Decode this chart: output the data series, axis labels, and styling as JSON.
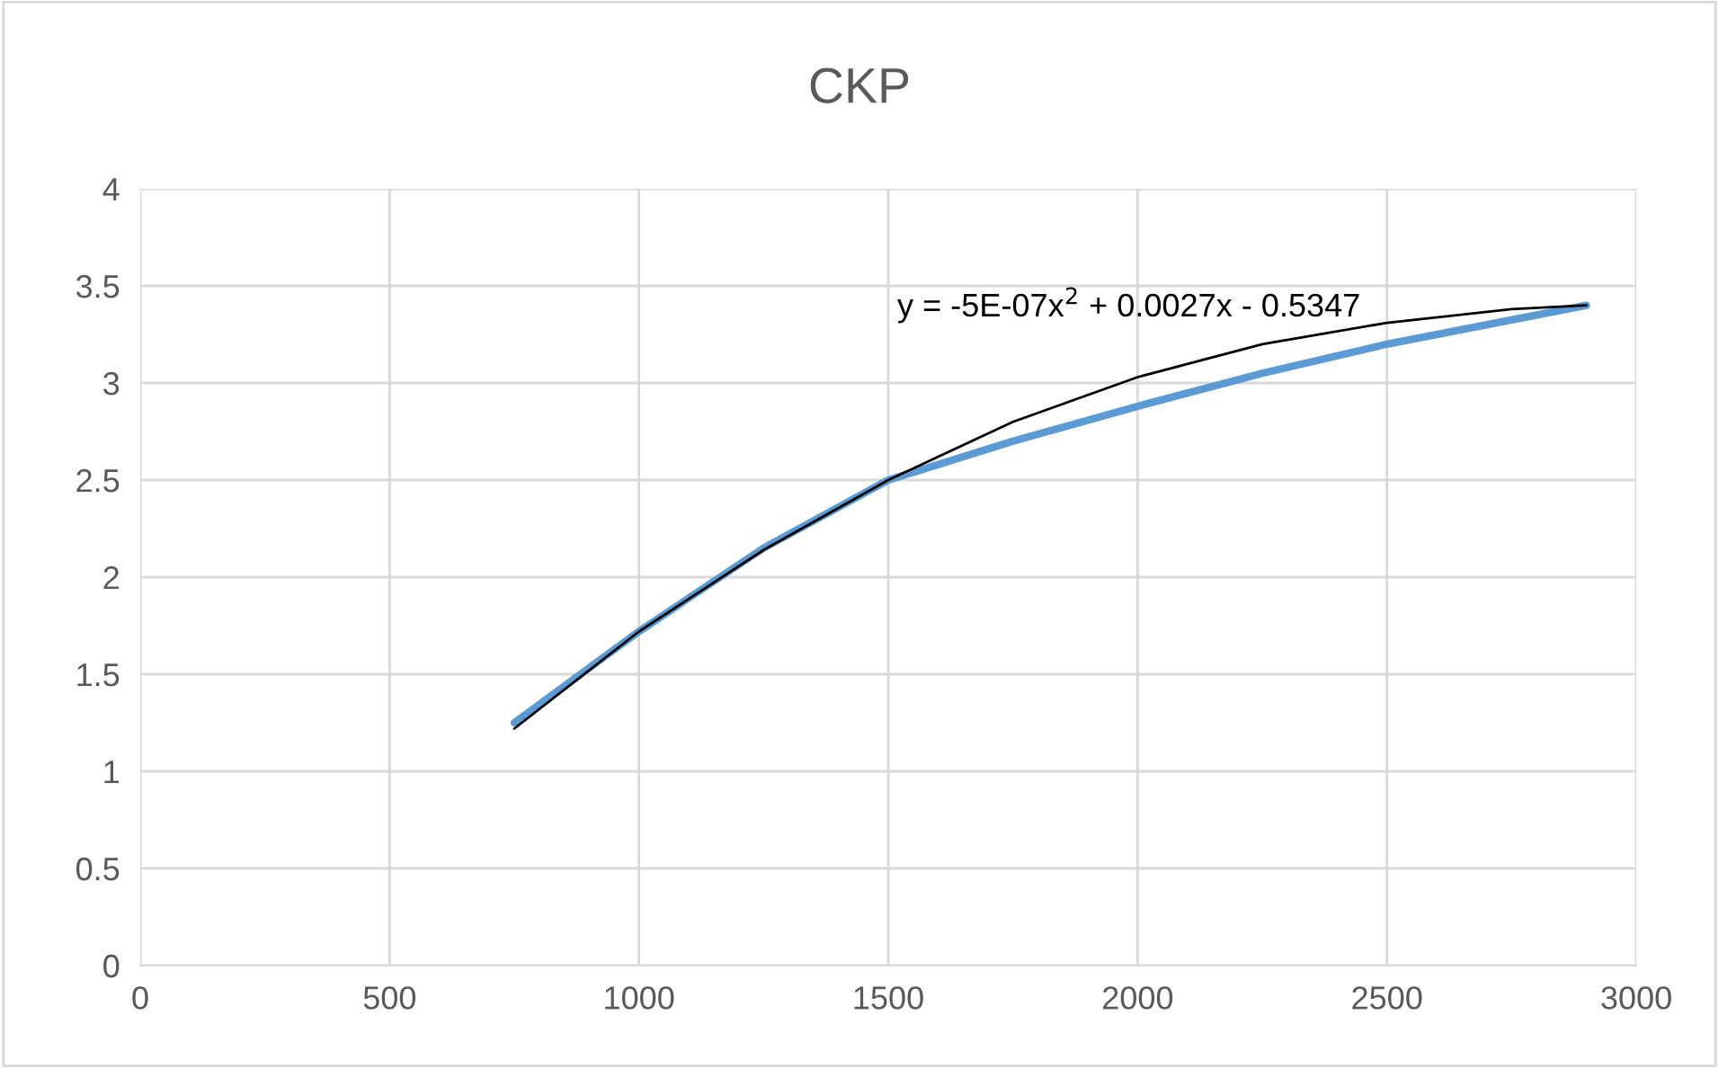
{
  "chart_data": {
    "type": "line",
    "title": "CKP",
    "series": [
      {
        "color": "#5b9bd5",
        "x": [
          750,
          1000,
          1250,
          1500,
          1750,
          2000,
          2250,
          2500,
          2900
        ],
        "values": [
          1.25,
          1.72,
          2.15,
          2.5,
          2.7,
          2.88,
          3.05,
          3.2,
          3.4
        ]
      },
      {
        "color": "#000000",
        "x": [
          750,
          1000,
          1250,
          1500,
          1750,
          2000,
          2250,
          2500,
          2750,
          2900
        ],
        "values": [
          1.22,
          1.72,
          2.14,
          2.5,
          2.8,
          3.03,
          3.2,
          3.31,
          3.38,
          3.4
        ]
      }
    ],
    "annotations": [
      "y = -5E-07x$^{2}$ + 0.0027x - 0.5347"
    ],
    "xlim": [
      0,
      3000
    ],
    "xticks": [
      0,
      500,
      1000,
      1500,
      2000,
      2500,
      3000
    ],
    "ylim": [
      0,
      4
    ],
    "yticks": [
      0,
      0.5,
      1,
      1.5,
      2,
      2.5,
      3,
      3.5,
      4
    ],
    "grid": true,
    "marker": "none",
    "line_style": "solid",
    "legend": false
  }
}
